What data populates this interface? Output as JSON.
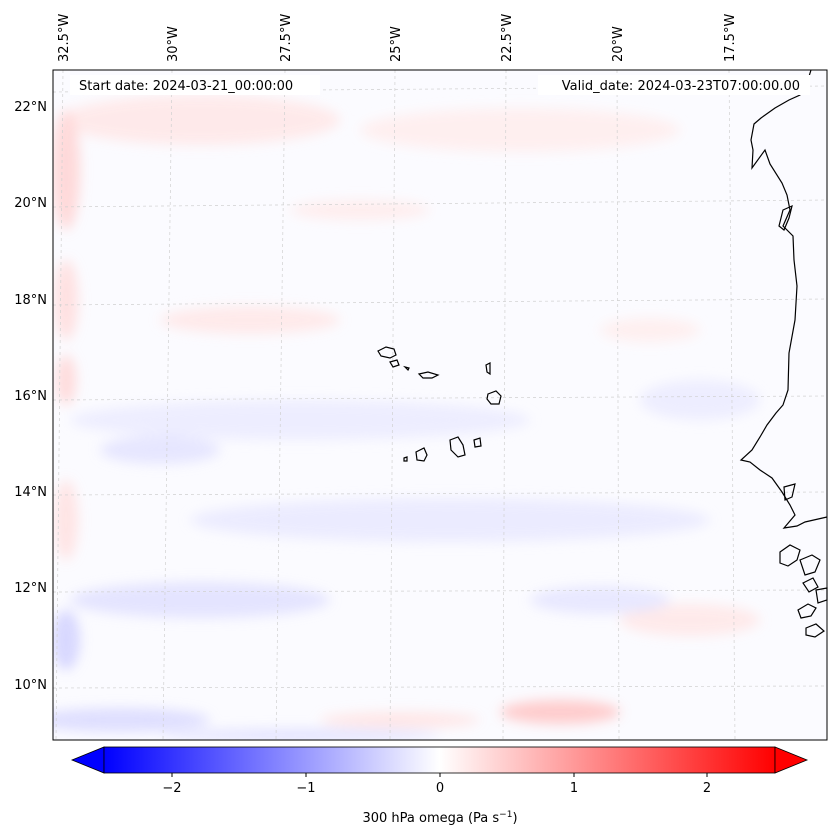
{
  "map": {
    "lon_labels": [
      "32.5°W",
      "30°W",
      "27.5°W",
      "25°W",
      "22.5°W",
      "20°W",
      "17.5°W"
    ],
    "lat_labels": [
      "22°N",
      "20°N",
      "18°N",
      "16°N",
      "14°N",
      "12°N",
      "10°N"
    ],
    "start_date": "Start date: 2024-03-21_00:00:00",
    "valid_date": "Valid_date: 2024-03-23T07:00:00.00"
  },
  "colorbar": {
    "ticks": [
      "−2",
      "−1",
      "0",
      "1",
      "2"
    ],
    "label": "300 hPa omega (Pa s",
    "label_sup": "−1",
    "label_end": ")",
    "min": -2.5,
    "max": 2.5,
    "low_color": "#0000ff",
    "mid_color": "#ffffff",
    "high_color": "#ff0000"
  }
}
